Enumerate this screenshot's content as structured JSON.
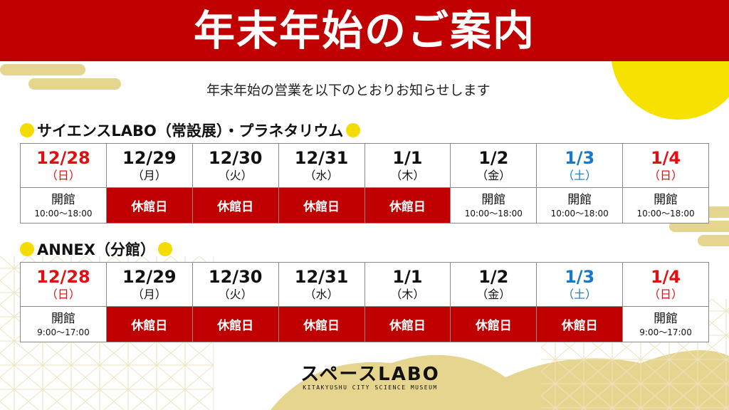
{
  "title": "年末年始のご案内",
  "subtitle": "年末年始の営業を以下のとおりお知らせします",
  "colors": {
    "header_red": "#c00000",
    "sunday_red": "#e01010",
    "saturday_blue": "#1878c8",
    "gold": "#e6d58e",
    "yellow": "#f4dc00"
  },
  "sections": [
    {
      "title": "サイエンスLABO（常設展）・プラネタリウム",
      "days": [
        {
          "date": "12/28",
          "dow": "（日）",
          "status": "開館",
          "hours": "10:00～18:00",
          "tone": "red",
          "closed": false
        },
        {
          "date": "12/29",
          "dow": "（月）",
          "status": "休館日",
          "hours": "",
          "tone": "",
          "closed": true
        },
        {
          "date": "12/30",
          "dow": "（火）",
          "status": "休館日",
          "hours": "",
          "tone": "",
          "closed": true
        },
        {
          "date": "12/31",
          "dow": "（水）",
          "status": "休館日",
          "hours": "",
          "tone": "",
          "closed": true
        },
        {
          "date": "1/1",
          "dow": "（木）",
          "status": "休館日",
          "hours": "",
          "tone": "",
          "closed": true
        },
        {
          "date": "1/2",
          "dow": "（金）",
          "status": "開館",
          "hours": "10:00～18:00",
          "tone": "",
          "closed": false
        },
        {
          "date": "1/3",
          "dow": "（土）",
          "status": "開館",
          "hours": "10:00～18:00",
          "tone": "blue",
          "closed": false
        },
        {
          "date": "1/4",
          "dow": "（日）",
          "status": "開館",
          "hours": "10:00～18:00",
          "tone": "red",
          "closed": false
        }
      ]
    },
    {
      "title": "ANNEX（分館）",
      "days": [
        {
          "date": "12/28",
          "dow": "（日）",
          "status": "開館",
          "hours": "9:00～17:00",
          "tone": "red",
          "closed": false
        },
        {
          "date": "12/29",
          "dow": "（月）",
          "status": "休館日",
          "hours": "",
          "tone": "",
          "closed": true
        },
        {
          "date": "12/30",
          "dow": "（火）",
          "status": "休館日",
          "hours": "",
          "tone": "",
          "closed": true
        },
        {
          "date": "12/31",
          "dow": "（水）",
          "status": "休館日",
          "hours": "",
          "tone": "",
          "closed": true
        },
        {
          "date": "1/1",
          "dow": "（木）",
          "status": "休館日",
          "hours": "",
          "tone": "",
          "closed": true
        },
        {
          "date": "1/2",
          "dow": "（金）",
          "status": "休館日",
          "hours": "",
          "tone": "",
          "closed": true
        },
        {
          "date": "1/3",
          "dow": "（土）",
          "status": "休館日",
          "hours": "",
          "tone": "blue",
          "closed": true
        },
        {
          "date": "1/4",
          "dow": "（日）",
          "status": "開館",
          "hours": "9:00～17:00",
          "tone": "red",
          "closed": false
        }
      ]
    }
  ],
  "logo": {
    "main": "スペースLABO",
    "sub": "KITAKYUSHU CITY SCIENCE MUSEUM"
  }
}
